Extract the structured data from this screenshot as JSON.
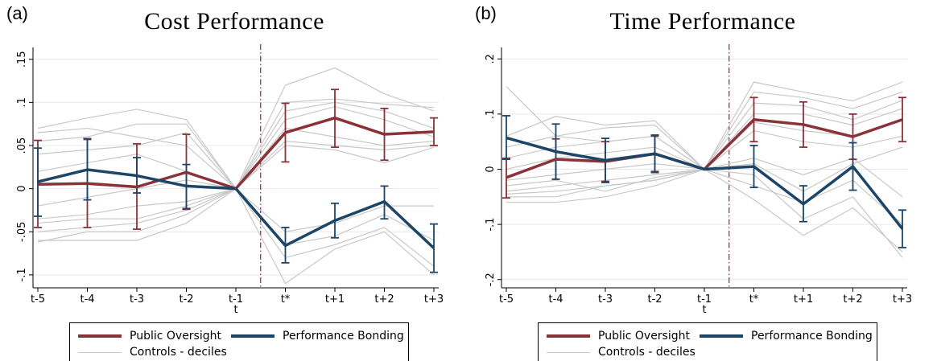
{
  "panels": [
    {
      "letter": "(a)",
      "title": "Cost Performance"
    },
    {
      "letter": "(b)",
      "title": "Time Performance"
    }
  ],
  "legend": {
    "items": [
      "Public Oversight",
      "Performance Bonding",
      "Controls - deciles"
    ]
  },
  "colors": {
    "public_oversight": "#8b3138",
    "performance_bonding": "#1c4568",
    "controls": "#c8c8c8",
    "event_line": "#9b2335",
    "grid": "#e4e9ef"
  },
  "chart_data": [
    {
      "type": "line",
      "title": "Cost Performance",
      "xlabel": "t",
      "ylabel": "",
      "categories": [
        "t-5",
        "t-4",
        "t-3",
        "t-2",
        "t-1",
        "t*",
        "t+1",
        "t+2",
        "t+3"
      ],
      "event_line_between": [
        "t-1",
        "t*"
      ],
      "ylim": [
        -0.115,
        0.16
      ],
      "yticks": [
        {
          "value": -0.1,
          "label": "-.1"
        },
        {
          "value": -0.05,
          "label": "-.05"
        },
        {
          "value": 0,
          "label": "0"
        },
        {
          "value": 0.05,
          "label": ".05"
        },
        {
          "value": 0.1,
          "label": ".1"
        },
        {
          "value": 0.15,
          "label": ".15"
        }
      ],
      "grid": true,
      "series": [
        {
          "name": "Public Oversight",
          "values": [
            0.005,
            0.006,
            0.002,
            0.019,
            0.0,
            0.065,
            0.082,
            0.063,
            0.066
          ],
          "ci_low": [
            -0.045,
            -0.045,
            -0.047,
            -0.024,
            0.0,
            0.031,
            0.048,
            0.033,
            0.05
          ],
          "ci_high": [
            0.056,
            0.057,
            0.052,
            0.063,
            0.0,
            0.099,
            0.115,
            0.093,
            0.082
          ]
        },
        {
          "name": "Performance Bonding",
          "values": [
            0.008,
            0.022,
            0.015,
            0.003,
            0.0,
            -0.066,
            -0.037,
            -0.015,
            -0.069
          ],
          "ci_low": [
            -0.032,
            -0.013,
            -0.005,
            -0.023,
            0.0,
            -0.086,
            -0.057,
            -0.035,
            -0.097
          ],
          "ci_high": [
            0.047,
            0.058,
            0.036,
            0.028,
            0.0,
            -0.045,
            -0.017,
            0.003,
            -0.041
          ]
        }
      ],
      "controls": [
        [
          0.065,
          0.07,
          0.06,
          0.05,
          0.0,
          0.12,
          0.14,
          0.11,
          0.09
        ],
        [
          0.07,
          0.082,
          0.092,
          0.08,
          0.0,
          0.1,
          0.104,
          0.098,
          0.094
        ],
        [
          0.055,
          0.06,
          0.075,
          0.075,
          0.0,
          0.09,
          0.1,
          0.09,
          0.07
        ],
        [
          0.04,
          0.045,
          0.05,
          0.065,
          0.0,
          0.08,
          0.095,
          0.08,
          0.06
        ],
        [
          0.02,
          0.03,
          0.04,
          0.02,
          0.0,
          0.07,
          0.06,
          0.05,
          0.055
        ],
        [
          -0.02,
          -0.01,
          0.0,
          0.01,
          0.0,
          0.055,
          0.05,
          0.045,
          0.05
        ],
        [
          -0.035,
          -0.03,
          -0.02,
          -0.015,
          0.0,
          0.05,
          0.045,
          0.03,
          0.048
        ],
        [
          -0.06,
          -0.06,
          -0.06,
          -0.04,
          0.0,
          -0.05,
          -0.04,
          -0.02,
          -0.02
        ],
        [
          -0.05,
          -0.045,
          -0.04,
          -0.025,
          0.0,
          -0.065,
          -0.055,
          -0.03,
          -0.06
        ],
        [
          -0.04,
          -0.035,
          -0.035,
          -0.02,
          0.0,
          -0.11,
          -0.07,
          -0.05,
          -0.1
        ],
        [
          -0.062,
          -0.05,
          -0.05,
          -0.03,
          0.0,
          -0.08,
          -0.065,
          -0.045,
          -0.09
        ]
      ]
    },
    {
      "type": "line",
      "title": "Time Performance",
      "xlabel": "t",
      "ylabel": "",
      "categories": [
        "t-5",
        "t-4",
        "t-3",
        "t-2",
        "t-1",
        "t*",
        "t+1",
        "t+2",
        "t+3"
      ],
      "event_line_between": [
        "t-1",
        "t*"
      ],
      "ylim": [
        -0.215,
        0.215
      ],
      "yticks": [
        {
          "value": -0.2,
          "label": "-.2"
        },
        {
          "value": -0.1,
          "label": "-.1"
        },
        {
          "value": 0,
          "label": "0"
        },
        {
          "value": 0.1,
          "label": ".1"
        },
        {
          "value": 0.2,
          "label": ".2"
        }
      ],
      "grid": true,
      "series": [
        {
          "name": "Public Oversight",
          "values": [
            -0.015,
            0.018,
            0.014,
            0.028,
            0.0,
            0.09,
            0.081,
            0.059,
            0.09
          ],
          "ci_low": [
            -0.052,
            -0.018,
            -0.022,
            -0.004,
            0.0,
            0.05,
            0.04,
            0.018,
            0.05
          ],
          "ci_high": [
            0.02,
            0.055,
            0.05,
            0.06,
            0.0,
            0.13,
            0.122,
            0.1,
            0.13
          ]
        },
        {
          "name": "Performance Bonding",
          "values": [
            0.057,
            0.032,
            0.016,
            0.028,
            0.0,
            0.005,
            -0.063,
            0.005,
            -0.108
          ],
          "ci_low": [
            0.018,
            -0.018,
            -0.024,
            -0.006,
            0.0,
            -0.033,
            -0.095,
            -0.038,
            -0.142
          ],
          "ci_high": [
            0.097,
            0.082,
            0.056,
            0.062,
            0.0,
            0.043,
            -0.03,
            0.048,
            -0.074
          ]
        }
      ],
      "controls": [
        [
          0.15,
          0.06,
          0.05,
          0.06,
          0.0,
          0.158,
          0.14,
          0.124,
          0.158
        ],
        [
          0.06,
          0.096,
          0.08,
          0.088,
          0.0,
          0.14,
          0.13,
          0.11,
          0.14
        ],
        [
          0.04,
          0.06,
          0.075,
          0.08,
          0.0,
          0.12,
          0.115,
          0.09,
          0.125
        ],
        [
          0.02,
          0.04,
          0.05,
          0.06,
          0.0,
          0.1,
          0.1,
          0.08,
          0.11
        ],
        [
          0.0,
          0.02,
          0.03,
          0.04,
          0.0,
          0.085,
          0.07,
          0.06,
          0.09
        ],
        [
          -0.02,
          -0.01,
          0.0,
          0.01,
          0.0,
          0.07,
          0.05,
          0.04,
          0.06
        ],
        [
          -0.04,
          -0.03,
          -0.02,
          -0.01,
          0.0,
          0.02,
          -0.01,
          0.02,
          -0.05
        ],
        [
          -0.05,
          -0.05,
          -0.03,
          -0.02,
          0.0,
          -0.03,
          -0.06,
          -0.02,
          -0.1
        ],
        [
          -0.06,
          -0.06,
          -0.05,
          -0.03,
          0.0,
          -0.055,
          -0.12,
          -0.07,
          -0.15
        ],
        [
          -0.03,
          -0.02,
          -0.04,
          -0.015,
          0.0,
          -0.01,
          -0.09,
          -0.05,
          -0.16
        ],
        [
          -0.045,
          -0.04,
          -0.03,
          -0.02,
          0.0,
          0.01,
          -0.04,
          0.01,
          0.04
        ]
      ]
    }
  ]
}
